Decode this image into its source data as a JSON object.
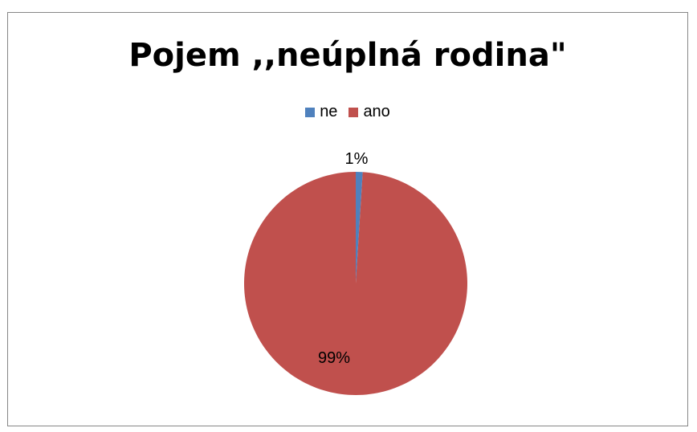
{
  "chart_data": {
    "type": "pie",
    "title": "Pojem ,,neúplná rodina\"",
    "categories": [
      "ne",
      "ano"
    ],
    "values": [
      1,
      99
    ],
    "labels": [
      "1%",
      "99%"
    ],
    "colors": [
      "#4F81BD",
      "#C0504D"
    ],
    "legend_position": "top"
  }
}
